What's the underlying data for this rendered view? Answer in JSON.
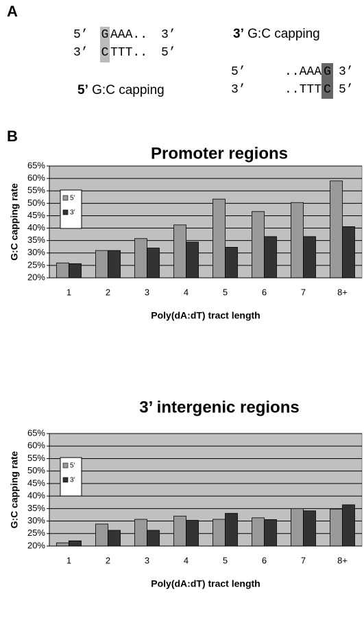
{
  "panel_labels": [
    "A",
    "B"
  ],
  "diagram": {
    "left": {
      "rows": [
        {
          "end_a": "5’",
          "cap": "G",
          "seq": "AAA..",
          "end_b": "3’"
        },
        {
          "end_a": "3’",
          "cap": "C",
          "seq": "TTT..",
          "end_b": "5’"
        }
      ],
      "caption_bold": "5’",
      "caption": "G:C capping"
    },
    "right": {
      "rows": [
        {
          "end_a": "5’",
          "seq": "..AAA",
          "cap": "G",
          "end_b": "3’"
        },
        {
          "end_a": "3’",
          "seq": "..TTT",
          "cap": "C",
          "end_b": "5’"
        }
      ],
      "caption_bold": "3’",
      "caption": "G:C capping"
    }
  },
  "chart_data": [
    {
      "type": "bar",
      "title": "Promoter regions",
      "x_label": "Poly(dA:dT) tract length",
      "y_label": "G:C capping rate",
      "categories": [
        "1",
        "2",
        "3",
        "4",
        "5",
        "6",
        "7",
        "8+"
      ],
      "series": [
        {
          "name": "5’",
          "color": "#999999",
          "values": [
            26,
            31,
            35.8,
            41.3,
            51.7,
            46.7,
            50.3,
            59
          ]
        },
        {
          "name": "3’",
          "color": "#333333",
          "values": [
            25.7,
            31,
            32,
            34.4,
            32.3,
            36.6,
            36.6,
            40.6
          ]
        }
      ],
      "ylim": [
        20,
        65
      ],
      "yticks": [
        {
          "value": 20,
          "label": "20%"
        },
        {
          "value": 25,
          "label": "25%"
        },
        {
          "value": 30,
          "label": "30%"
        },
        {
          "value": 35,
          "label": "35%"
        },
        {
          "value": 40,
          "label": "40%"
        },
        {
          "value": 45,
          "label": "45%"
        },
        {
          "value": 50,
          "label": "50%"
        },
        {
          "value": 55,
          "label": "55%"
        },
        {
          "value": 60,
          "label": "60%"
        },
        {
          "value": 65,
          "label": "65%"
        }
      ],
      "grid": true,
      "legend": "upper left",
      "background": "#c0c0c0"
    },
    {
      "type": "bar",
      "title": "3’ intergenic regions",
      "x_label": "Poly(dA:dT) tract length",
      "y_label": "G:C capping rate",
      "categories": [
        "1",
        "2",
        "3",
        "4",
        "5",
        "6",
        "7",
        "8+"
      ],
      "series": [
        {
          "name": "5’",
          "color": "#999999",
          "values": [
            21.3,
            28.8,
            30.7,
            32,
            30.7,
            31.3,
            35,
            34.8
          ]
        },
        {
          "name": "3’",
          "color": "#333333",
          "values": [
            22.1,
            26.3,
            26.3,
            30.3,
            33.1,
            30.6,
            34.1,
            36.5
          ]
        }
      ],
      "ylim": [
        20,
        65
      ],
      "yticks": [
        {
          "value": 20,
          "label": "20%"
        },
        {
          "value": 25,
          "label": "25%"
        },
        {
          "value": 30,
          "label": "30%"
        },
        {
          "value": 35,
          "label": "35%"
        },
        {
          "value": 40,
          "label": "40%"
        },
        {
          "value": 45,
          "label": "45%"
        },
        {
          "value": 50,
          "label": "50%"
        },
        {
          "value": 55,
          "label": "55%"
        },
        {
          "value": 60,
          "label": "60%"
        },
        {
          "value": 65,
          "label": "65%"
        }
      ],
      "grid": true,
      "legend": "upper left",
      "background": "#c0c0c0"
    }
  ]
}
